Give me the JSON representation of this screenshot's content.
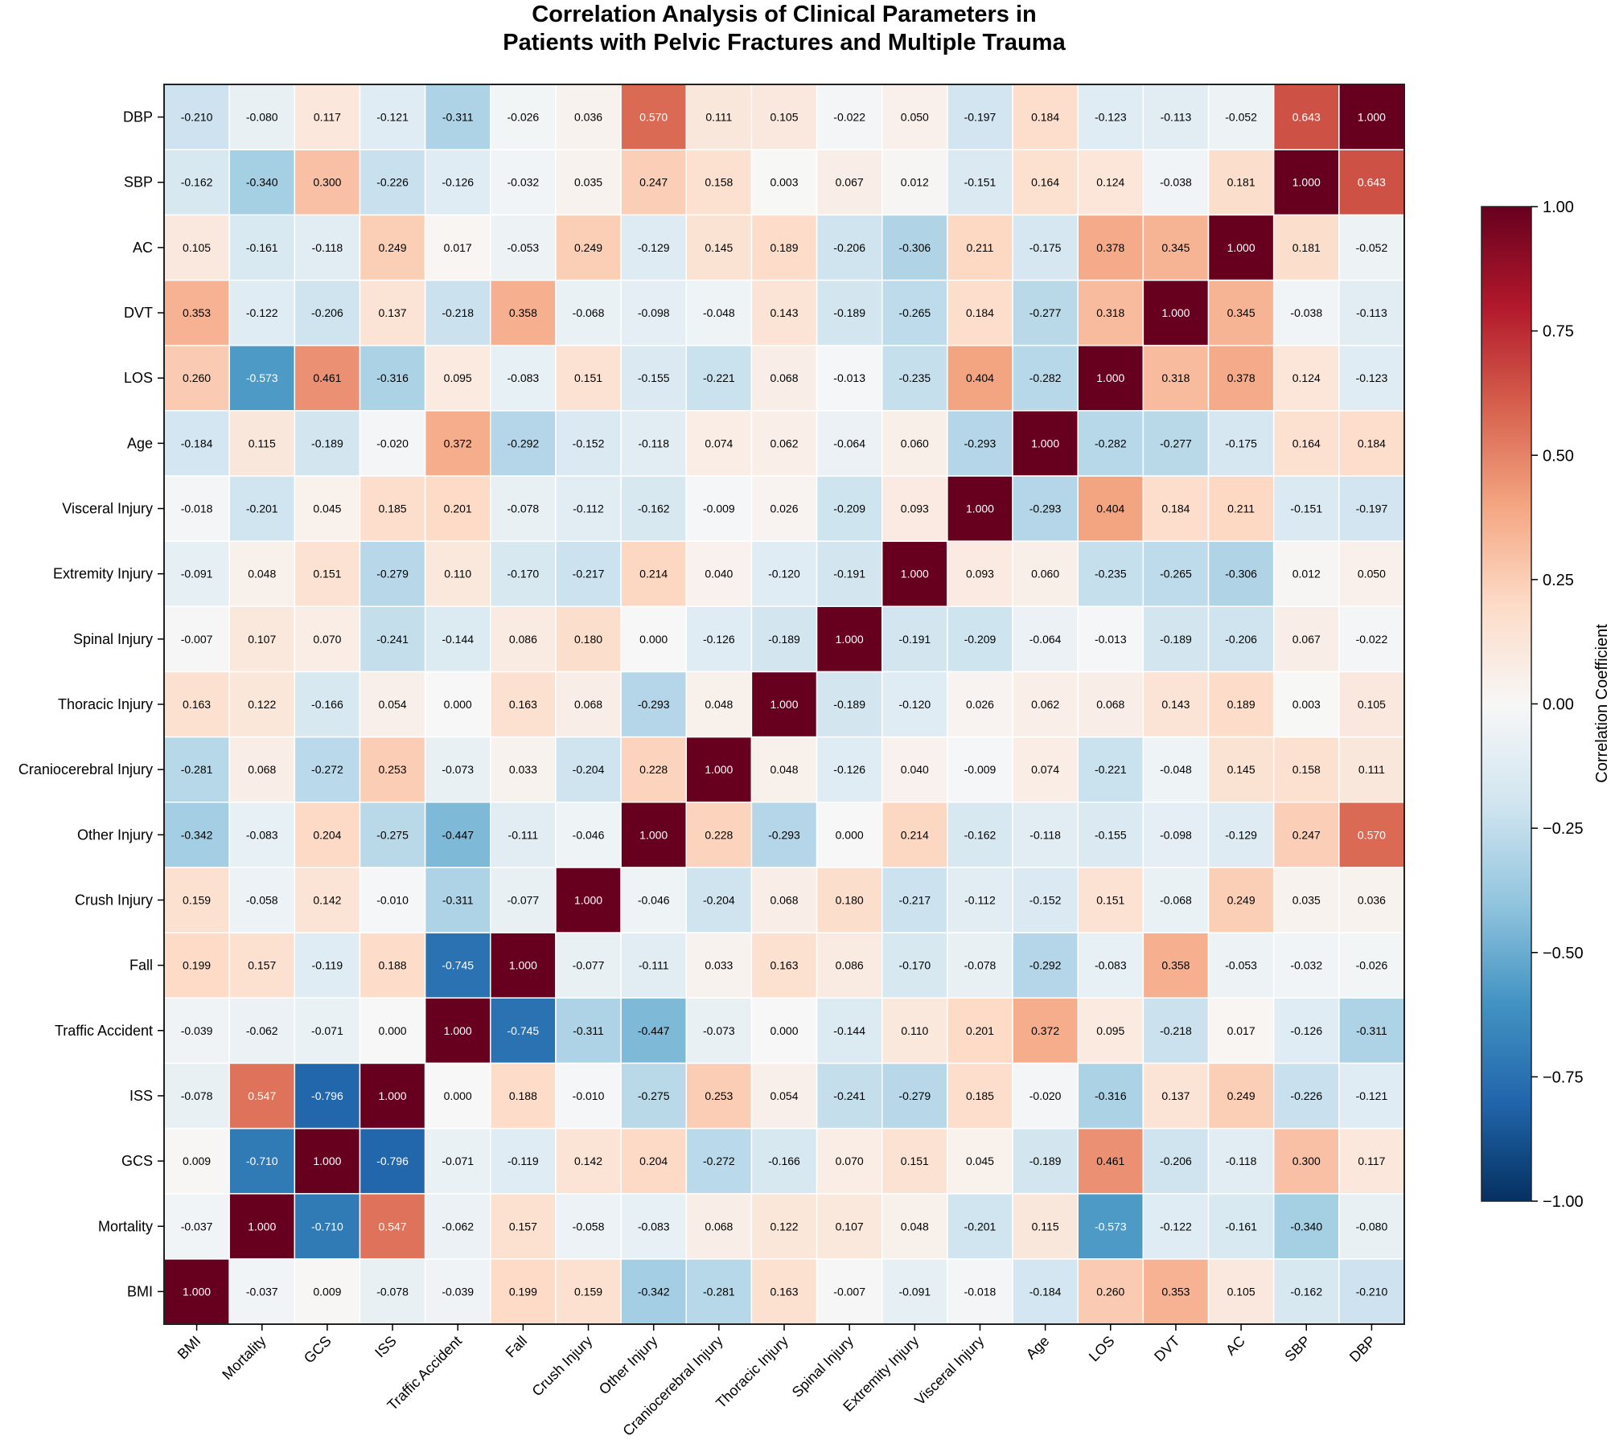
{
  "chart_data": {
    "type": "heatmap",
    "title": "Correlation Analysis of Clinical Parameters in\nPatients with Pelvic Fractures and Multiple Trauma",
    "title_lines": [
      "Correlation Analysis of Clinical Parameters in",
      "Patients with Pelvic Fractures and Multiple Trauma"
    ],
    "variables": [
      "BMI",
      "Mortality",
      "GCS",
      "ISS",
      "Traffic Accident",
      "Fall",
      "Crush Injury",
      "Other Injury",
      "Craniocerebral Injury",
      "Thoracic Injury",
      "Spinal Injury",
      "Extremity Injury",
      "Visceral Injury",
      "Age",
      "LOS",
      "DVT",
      "AC",
      "SBP",
      "DBP"
    ],
    "x_order": "left-to-right follows variables",
    "y_order": "bottom-to-top follows variables",
    "matrix": [
      [
        1.0,
        -0.037,
        0.009,
        -0.078,
        -0.039,
        0.199,
        0.159,
        -0.342,
        -0.281,
        0.163,
        -0.007,
        -0.091,
        -0.018,
        -0.184,
        0.26,
        0.353,
        0.105,
        -0.162,
        -0.21
      ],
      [
        -0.037,
        1.0,
        -0.71,
        0.547,
        -0.062,
        0.157,
        -0.058,
        -0.083,
        0.068,
        0.122,
        0.107,
        0.048,
        -0.201,
        0.115,
        -0.573,
        -0.122,
        -0.161,
        -0.34,
        -0.08
      ],
      [
        0.009,
        -0.71,
        1.0,
        -0.796,
        -0.071,
        -0.119,
        0.142,
        0.204,
        -0.272,
        -0.166,
        0.07,
        0.151,
        0.045,
        -0.189,
        0.461,
        -0.206,
        -0.118,
        0.3,
        0.117
      ],
      [
        -0.078,
        0.547,
        -0.796,
        1.0,
        0.0,
        0.188,
        -0.01,
        -0.275,
        0.253,
        0.054,
        -0.241,
        -0.279,
        0.185,
        -0.02,
        -0.316,
        0.137,
        0.249,
        -0.226,
        -0.121
      ],
      [
        -0.039,
        -0.062,
        -0.071,
        0.0,
        1.0,
        -0.745,
        -0.311,
        -0.447,
        -0.073,
        0.0,
        -0.144,
        0.11,
        0.201,
        0.372,
        0.095,
        -0.218,
        0.017,
        -0.126,
        -0.311
      ],
      [
        0.199,
        0.157,
        -0.119,
        0.188,
        -0.745,
        1.0,
        -0.077,
        -0.111,
        0.033,
        0.163,
        0.086,
        -0.17,
        -0.078,
        -0.292,
        -0.083,
        0.358,
        -0.053,
        -0.032,
        -0.026
      ],
      [
        0.159,
        -0.058,
        0.142,
        -0.01,
        -0.311,
        -0.077,
        1.0,
        -0.046,
        -0.204,
        0.068,
        0.18,
        -0.217,
        -0.112,
        -0.152,
        0.151,
        -0.068,
        0.249,
        0.035,
        0.036
      ],
      [
        -0.342,
        -0.083,
        0.204,
        -0.275,
        -0.447,
        -0.111,
        -0.046,
        1.0,
        0.228,
        -0.293,
        0.0,
        0.214,
        -0.162,
        -0.118,
        -0.155,
        -0.098,
        -0.129,
        0.247,
        0.57
      ],
      [
        -0.281,
        0.068,
        -0.272,
        0.253,
        -0.073,
        0.033,
        -0.204,
        0.228,
        1.0,
        0.048,
        -0.126,
        0.04,
        -0.009,
        0.074,
        -0.221,
        -0.048,
        0.145,
        0.158,
        0.111
      ],
      [
        0.163,
        0.122,
        -0.166,
        0.054,
        0.0,
        0.163,
        0.068,
        -0.293,
        0.048,
        1.0,
        -0.189,
        -0.12,
        0.026,
        0.062,
        0.068,
        0.143,
        0.189,
        0.003,
        0.105
      ],
      [
        -0.007,
        0.107,
        0.07,
        -0.241,
        -0.144,
        0.086,
        0.18,
        0.0,
        -0.126,
        -0.189,
        1.0,
        -0.191,
        -0.209,
        -0.064,
        -0.013,
        -0.189,
        -0.206,
        0.067,
        -0.022
      ],
      [
        -0.091,
        0.048,
        0.151,
        -0.279,
        0.11,
        -0.17,
        -0.217,
        0.214,
        0.04,
        -0.12,
        -0.191,
        1.0,
        0.093,
        0.06,
        -0.235,
        -0.265,
        -0.306,
        0.012,
        0.05
      ],
      [
        -0.018,
        -0.201,
        0.045,
        0.185,
        0.201,
        -0.078,
        -0.112,
        -0.162,
        -0.009,
        0.026,
        -0.209,
        0.093,
        1.0,
        -0.293,
        0.404,
        0.184,
        0.211,
        -0.151,
        -0.197
      ],
      [
        -0.184,
        0.115,
        -0.189,
        -0.02,
        0.372,
        -0.292,
        -0.152,
        -0.118,
        0.074,
        0.062,
        -0.064,
        0.06,
        -0.293,
        1.0,
        -0.282,
        -0.277,
        -0.175,
        0.164,
        0.184
      ],
      [
        0.26,
        -0.573,
        0.461,
        -0.316,
        0.095,
        -0.083,
        0.151,
        -0.155,
        -0.221,
        0.068,
        -0.013,
        -0.235,
        0.404,
        -0.282,
        1.0,
        0.318,
        0.378,
        0.124,
        -0.123
      ],
      [
        0.353,
        -0.122,
        -0.206,
        0.137,
        -0.218,
        0.358,
        -0.068,
        -0.098,
        -0.048,
        0.143,
        -0.189,
        -0.265,
        0.184,
        -0.277,
        0.318,
        1.0,
        0.345,
        -0.038,
        -0.113
      ],
      [
        0.105,
        -0.161,
        -0.118,
        0.249,
        0.017,
        -0.053,
        0.249,
        -0.129,
        0.145,
        0.189,
        -0.206,
        -0.306,
        0.211,
        -0.175,
        0.378,
        0.345,
        1.0,
        0.181,
        -0.052
      ],
      [
        -0.162,
        -0.34,
        0.3,
        -0.226,
        -0.126,
        -0.032,
        0.035,
        0.247,
        0.158,
        0.003,
        0.067,
        0.012,
        -0.151,
        0.164,
        0.124,
        -0.038,
        0.181,
        1.0,
        0.643
      ],
      [
        -0.21,
        -0.08,
        0.117,
        -0.121,
        -0.311,
        -0.026,
        0.036,
        0.57,
        0.111,
        0.105,
        -0.022,
        0.05,
        -0.197,
        0.184,
        -0.123,
        -0.113,
        -0.052,
        0.643,
        1.0
      ]
    ],
    "value_format": "3 decimals",
    "colorbar": {
      "label": "Correlation Coefficient",
      "range": [
        -1.0,
        1.0
      ],
      "ticks": [
        "1.00",
        "0.75",
        "0.50",
        "0.25",
        "0.00",
        "−0.25",
        "−0.50",
        "−0.75",
        "−1.00"
      ],
      "tick_values": [
        1.0,
        0.75,
        0.5,
        0.25,
        0.0,
        -0.25,
        -0.5,
        -0.75,
        -1.0
      ],
      "colormap": "RdBu_r",
      "stops": [
        "#053061",
        "#2166ac",
        "#4393c3",
        "#92c5de",
        "#d1e5f0",
        "#f7f7f7",
        "#fddbc7",
        "#f4a582",
        "#d6604d",
        "#b2182b",
        "#67001f"
      ]
    },
    "xlabel": "",
    "ylabel": "",
    "grid": false
  }
}
